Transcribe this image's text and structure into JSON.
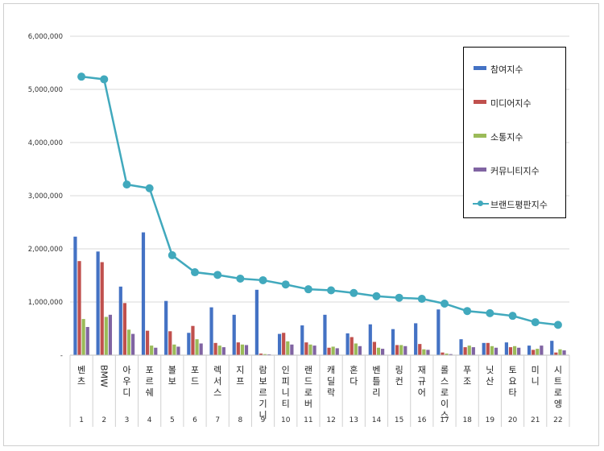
{
  "chart_data": {
    "type": "bar",
    "title": "",
    "xlabel": "",
    "ylabel": "",
    "ylim": [
      0,
      6000000
    ],
    "yticks": [
      "-",
      "1,000,000",
      "2,000,000",
      "3,000,000",
      "4,000,000",
      "5,000,000",
      "6,000,000"
    ],
    "grid": true,
    "legend_position": "right",
    "categories": [
      "벤츠",
      "BMW",
      "아우디",
      "포르쉐",
      "볼보",
      "포드",
      "렉서스",
      "지프",
      "람보르기니",
      "인피니티",
      "랜드로버",
      "캐딜락",
      "혼다",
      "벤틀리",
      "링컨",
      "재규어",
      "롤스로이스",
      "푸조",
      "닛산",
      "토요타",
      "미니",
      "시트로엥"
    ],
    "ranks": [
      "1",
      "2",
      "3",
      "4",
      "5",
      "6",
      "7",
      "8",
      "9",
      "10",
      "11",
      "12",
      "13",
      "14",
      "15",
      "16",
      "17",
      "18",
      "19",
      "20",
      "21",
      "22"
    ],
    "series": [
      {
        "name": "참여지수",
        "kind": "bar",
        "color": "#4472c4",
        "values": [
          2230000,
          1950000,
          1290000,
          2310000,
          1020000,
          420000,
          900000,
          760000,
          1230000,
          400000,
          560000,
          760000,
          410000,
          580000,
          490000,
          600000,
          860000,
          300000,
          230000,
          240000,
          180000,
          270000
        ]
      },
      {
        "name": "미디어지수",
        "kind": "bar",
        "color": "#c0504d",
        "values": [
          1770000,
          1750000,
          980000,
          460000,
          450000,
          550000,
          230000,
          240000,
          30000,
          420000,
          240000,
          140000,
          340000,
          250000,
          190000,
          210000,
          50000,
          150000,
          230000,
          150000,
          100000,
          50000
        ]
      },
      {
        "name": "소통지수",
        "kind": "bar",
        "color": "#9bbb59",
        "values": [
          680000,
          720000,
          480000,
          180000,
          200000,
          300000,
          180000,
          200000,
          20000,
          260000,
          200000,
          160000,
          220000,
          140000,
          190000,
          110000,
          30000,
          180000,
          170000,
          170000,
          120000,
          110000
        ]
      },
      {
        "name": "커뮤니티지수",
        "kind": "bar",
        "color": "#8064a2",
        "values": [
          530000,
          760000,
          400000,
          140000,
          160000,
          220000,
          150000,
          190000,
          15000,
          200000,
          180000,
          130000,
          170000,
          120000,
          170000,
          100000,
          20000,
          150000,
          140000,
          140000,
          180000,
          90000
        ]
      },
      {
        "name": "브랜드평판지수",
        "kind": "line",
        "color": "#41a9bd",
        "values": [
          5240000,
          5190000,
          3210000,
          3140000,
          1880000,
          1560000,
          1510000,
          1440000,
          1410000,
          1330000,
          1240000,
          1220000,
          1170000,
          1110000,
          1080000,
          1060000,
          970000,
          830000,
          790000,
          740000,
          620000,
          570000
        ]
      }
    ]
  }
}
